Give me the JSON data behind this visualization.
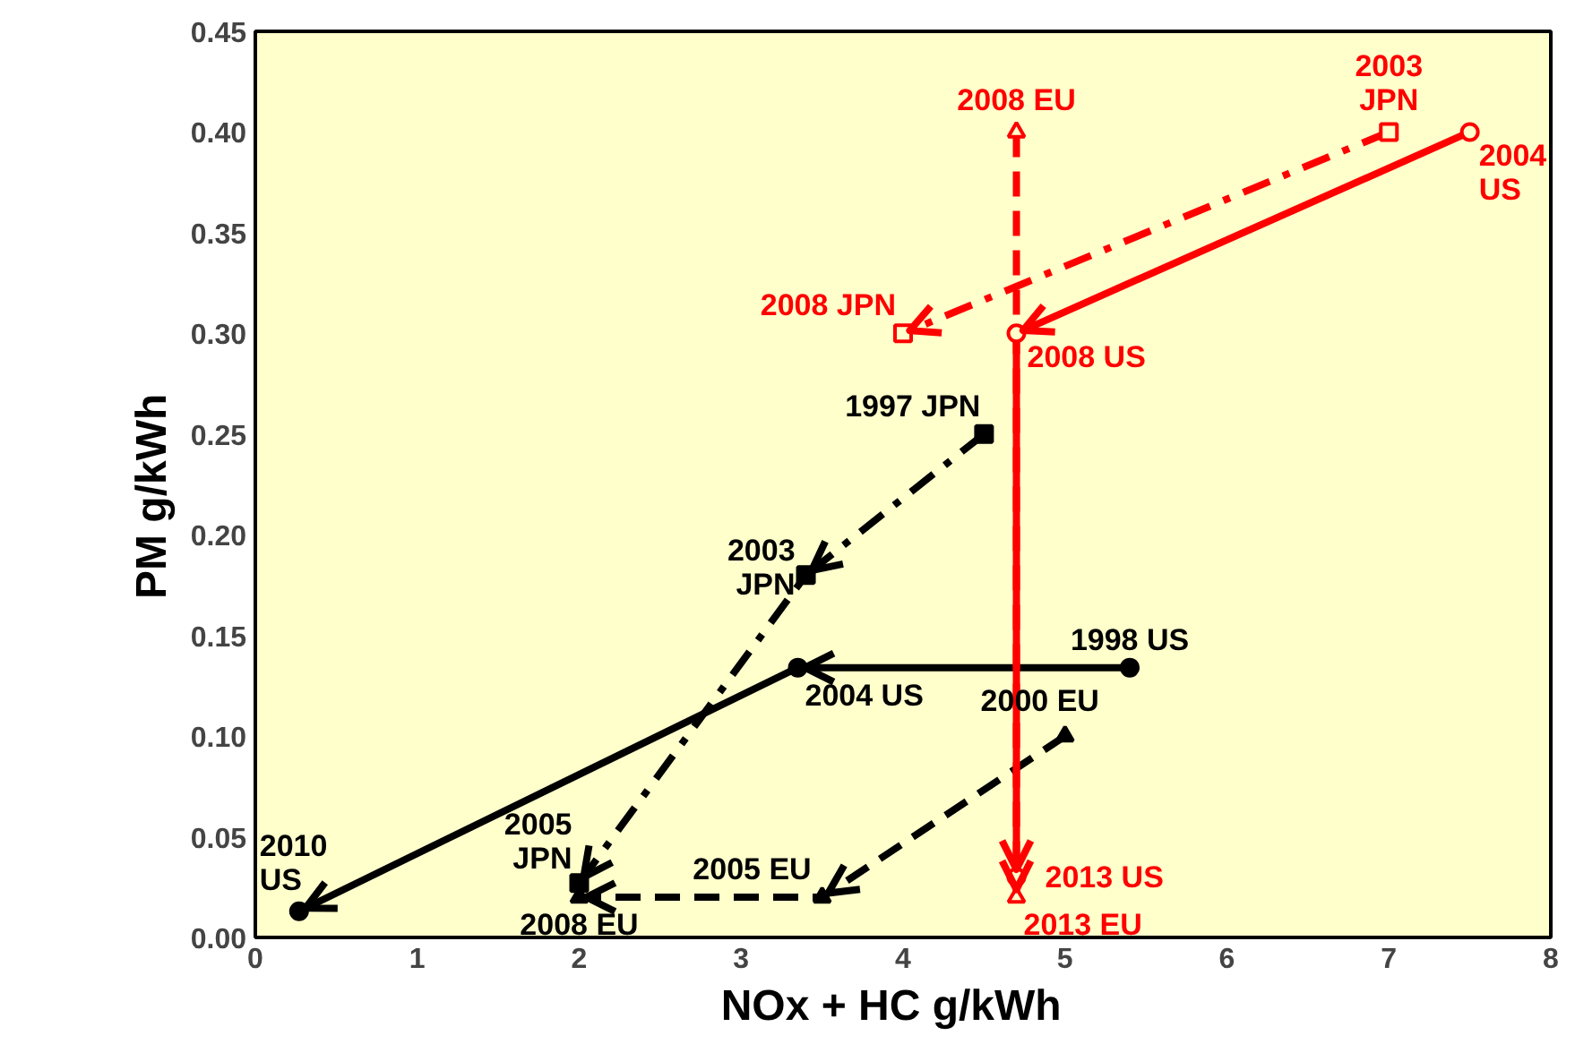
{
  "chart_data": {
    "type": "line",
    "xlabel": "NOx + HC   g/kWh",
    "ylabel": "PM   g/kWh",
    "xlim": [
      0,
      8
    ],
    "ylim": [
      0,
      0.45
    ],
    "xticks": [
      0,
      1,
      2,
      3,
      4,
      5,
      6,
      7,
      8
    ],
    "yticks": [
      {
        "value": 0,
        "label": "0.00"
      },
      {
        "value": 0.05,
        "label": "0.05"
      },
      {
        "value": 0.1,
        "label": "0.10"
      },
      {
        "value": 0.15,
        "label": "0.15"
      },
      {
        "value": 0.2,
        "label": "0.20"
      },
      {
        "value": 0.25,
        "label": "0.25"
      },
      {
        "value": 0.3,
        "label": "0.30"
      },
      {
        "value": 0.35,
        "label": "0.35"
      },
      {
        "value": 0.4,
        "label": "0.40"
      },
      {
        "value": 0.45,
        "label": "0.45"
      }
    ],
    "grid": false,
    "series": [
      {
        "color": "#000000",
        "x": [
          4.5,
          3.4,
          2.0
        ],
        "values": [
          0.25,
          0.18,
          0.027
        ],
        "marker": "square",
        "line_style": "dashdot"
      },
      {
        "color": "#000000",
        "x": [
          5.4,
          3.35,
          0.27
        ],
        "values": [
          0.134,
          0.134,
          0.013
        ],
        "marker": "circle",
        "line_style": "solid"
      },
      {
        "color": "#000000",
        "x": [
          5.0,
          3.5,
          2.0
        ],
        "values": [
          0.1,
          0.02,
          0.02
        ],
        "marker": "triangle",
        "line_style": "dashed"
      },
      {
        "color": "#ff0000",
        "x": [
          7.0,
          4.0
        ],
        "values": [
          0.4,
          0.3
        ],
        "marker": "square",
        "line_style": "dashdot"
      },
      {
        "color": "#ff0000",
        "x": [
          7.5,
          4.7,
          4.7
        ],
        "values": [
          0.4,
          0.3,
          0.03
        ],
        "marker": "circle",
        "line_style": "solid"
      },
      {
        "color": "#ff0000",
        "x": [
          4.7,
          4.7
        ],
        "values": [
          0.4,
          0.02
        ],
        "marker": "triangle",
        "line_style": "dashed"
      }
    ],
    "annotations": [
      {
        "text": "1997 JPN",
        "x": 4.5,
        "y": 0.25
      },
      {
        "text": "2003 JPN",
        "x": 3.4,
        "y": 0.18
      },
      {
        "text": "2005 JPN",
        "x": 2.0,
        "y": 0.027
      },
      {
        "text": "1998 US",
        "x": 5.4,
        "y": 0.134
      },
      {
        "text": "2004 US",
        "x": 3.35,
        "y": 0.134
      },
      {
        "text": "2010 US",
        "x": 0.27,
        "y": 0.013
      },
      {
        "text": "2000 EU",
        "x": 5.0,
        "y": 0.1
      },
      {
        "text": "2005 EU",
        "x": 3.5,
        "y": 0.02
      },
      {
        "text": "2008 EU",
        "x": 2.0,
        "y": 0.02
      },
      {
        "text": "2003 JPN",
        "x": 7.0,
        "y": 0.4
      },
      {
        "text": "2008 JPN",
        "x": 4.0,
        "y": 0.3
      },
      {
        "text": "2004 US",
        "x": 7.5,
        "y": 0.4
      },
      {
        "text": "2008 US",
        "x": 4.7,
        "y": 0.3
      },
      {
        "text": "2013 US",
        "x": 4.7,
        "y": 0.03
      },
      {
        "text": "2013 EU",
        "x": 4.7,
        "y": 0.02
      },
      {
        "text": "2008 EU",
        "x": 4.7,
        "y": 0.4
      }
    ]
  }
}
